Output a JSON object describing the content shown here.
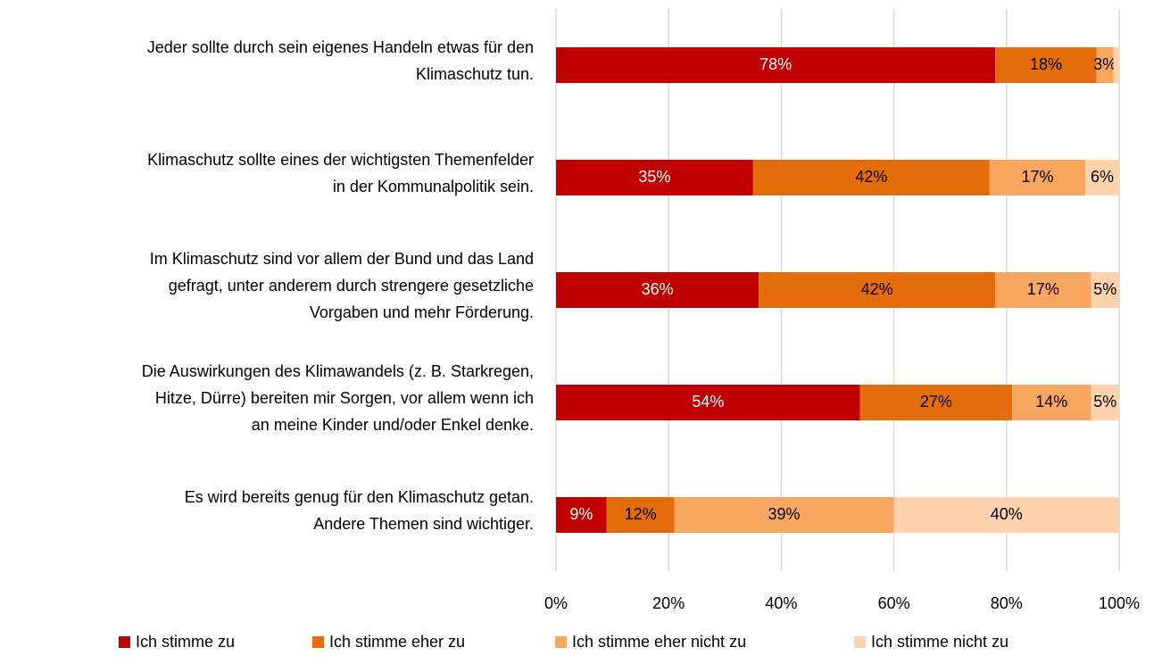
{
  "chart_data": {
    "type": "stacked_barh",
    "categories": [
      [
        "Jeder sollte durch sein eigenes Handeln etwas für den",
        "Klimaschutz tun."
      ],
      [
        "Klimaschutz sollte eines der wichtigsten Themenfelder",
        "in der Kommunalpolitik sein."
      ],
      [
        "Im Klimaschutz sind vor allem der Bund und das Land",
        "gefragt, unter anderem durch strengere gesetzliche",
        "Vorgaben und mehr Förderung."
      ],
      [
        "Die Auswirkungen des Klimawandels (z. B. Starkregen,",
        "Hitze, Dürre) bereiten mir Sorgen, vor allem wenn ich",
        "an meine Kinder und/oder Enkel denke."
      ],
      [
        "Es wird bereits genug für den Klimaschutz getan.",
        "Andere Themen sind wichtiger."
      ]
    ],
    "series": [
      {
        "name": "Ich stimme zu",
        "color": "#c00000",
        "label_color": "#ffffff",
        "values": [
          78,
          35,
          36,
          54,
          9
        ],
        "value_labels": [
          "78%",
          "35%",
          "36%",
          "54%",
          "9%"
        ]
      },
      {
        "name": "Ich stimme eher zu",
        "color": "#e46c0a",
        "label_color": "#000000",
        "values": [
          18,
          42,
          42,
          27,
          12
        ],
        "value_labels": [
          "18%",
          "42%",
          "42%",
          "27%",
          "12%"
        ]
      },
      {
        "name": "Ich stimme eher nicht zu",
        "color": "#f8a660",
        "label_color": "#000000",
        "values": [
          3,
          17,
          17,
          14,
          39
        ],
        "value_labels": [
          "3%",
          "17%",
          "17%",
          "14%",
          "39%"
        ]
      },
      {
        "name": "Ich stimme nicht zu",
        "color": "#fcd3ad",
        "label_color": "#000000",
        "values": [
          1,
          6,
          5,
          5,
          40
        ],
        "value_labels": [
          null,
          "6%",
          "5%",
          "5%",
          "40%"
        ]
      }
    ],
    "xlim": [
      0,
      100
    ],
    "xticks": [
      {
        "value": 0,
        "label": "0%"
      },
      {
        "value": 20,
        "label": "20%"
      },
      {
        "value": 40,
        "label": "40%"
      },
      {
        "value": 60,
        "label": "60%"
      },
      {
        "value": 80,
        "label": "80%"
      },
      {
        "value": 100,
        "label": "100%"
      }
    ],
    "grid": true,
    "legend": "bottom"
  }
}
